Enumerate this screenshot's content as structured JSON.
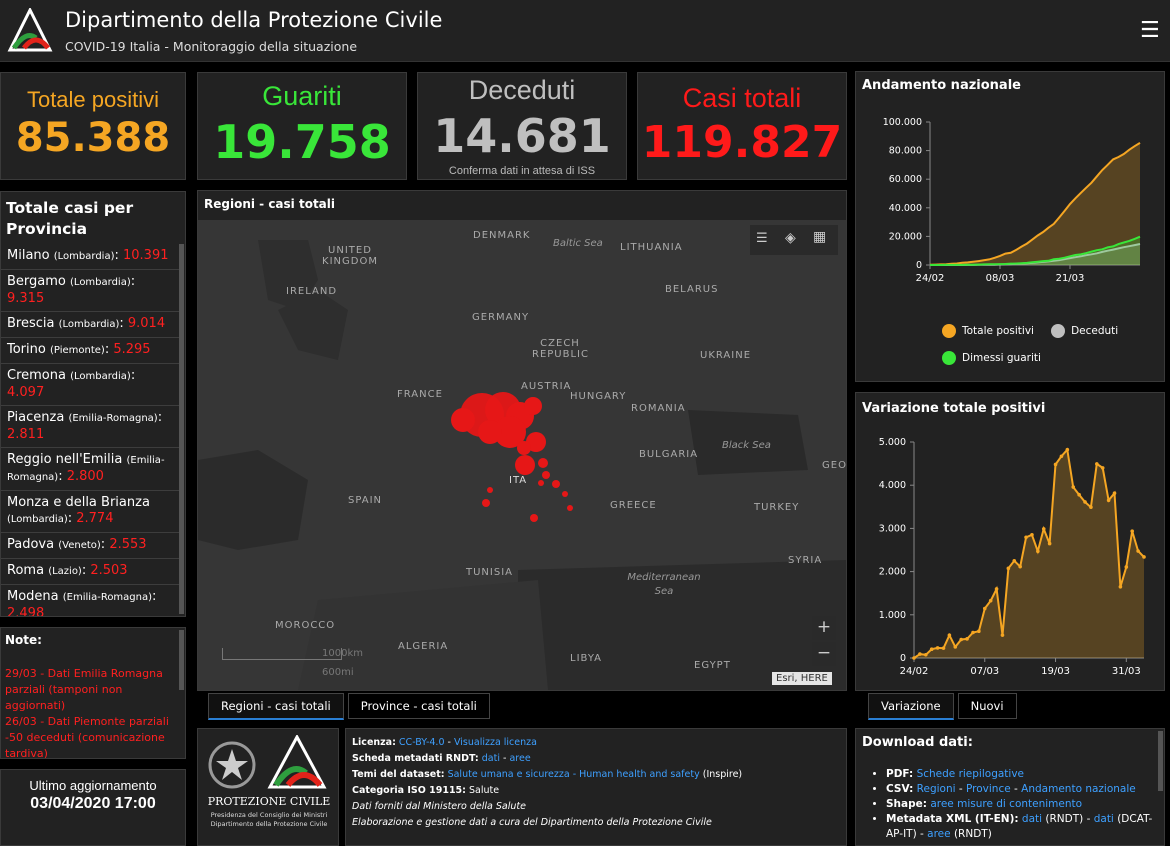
{
  "header": {
    "title": "Dipartimento della Protezione Civile",
    "subtitle": "COVID-19 Italia - Monitoraggio della situazione",
    "menu_icon": "hamburger-icon"
  },
  "kpis": {
    "totale_positivi": {
      "label": "Totale positivi",
      "value": "85.388",
      "color": "#f5a623"
    },
    "guariti": {
      "label": "Guariti",
      "value": "19.758",
      "color": "#39e639"
    },
    "deceduti": {
      "label": "Deceduti",
      "value": "14.681",
      "note": "Conferma dati in attesa di ISS",
      "color": "#bfbfbf"
    },
    "casi_totali": {
      "label": "Casi totali",
      "value": "119.827",
      "color": "#ff1a1a"
    }
  },
  "province": {
    "title": "Totale casi per Provincia",
    "items": [
      {
        "name": "Milano",
        "region": "(Lombardia)",
        "value": "10.391"
      },
      {
        "name": "Bergamo",
        "region": "(Lombardia)",
        "value": "9.315"
      },
      {
        "name": "Brescia",
        "region": "(Lombardia)",
        "value": "9.014"
      },
      {
        "name": "Torino",
        "region": "(Piemonte)",
        "value": "5.295"
      },
      {
        "name": "Cremona",
        "region": "(Lombardia)",
        "value": "4.097"
      },
      {
        "name": "Piacenza",
        "region": "(Emilia-Romagna)",
        "value": "2.811"
      },
      {
        "name": "Reggio nell'Emilia",
        "region": "(Emilia-Romagna)",
        "value": "2.800"
      },
      {
        "name": "Monza e della Brianza",
        "region": "(Lombardia)",
        "value": "2.774"
      },
      {
        "name": "Padova",
        "region": "(Veneto)",
        "value": "2.553"
      },
      {
        "name": "Roma",
        "region": "(Lazio)",
        "value": "2.503"
      },
      {
        "name": "Modena",
        "region": "(Emilia-Romagna)",
        "value": "2.498"
      }
    ]
  },
  "notes": {
    "title": "Note:",
    "text1": "29/03 - Dati  Emilia Romagna parziali (tamponi non aggiornati)",
    "text2": "26/03 - Dati Piemonte parziali -50 deceduti (comunicazione tardiva)"
  },
  "update": {
    "label": "Ultimo aggiornamento",
    "value": "03/04/2020 17:00"
  },
  "map": {
    "title": "Regioni - casi totali",
    "labels": {
      "denmark": "DENMARK",
      "baltic": "Baltic Sea",
      "lithuania": "LITHUANIA",
      "uk": "UNITED KINGDOM",
      "ireland": "IRELAND",
      "belarus": "BELARUS",
      "germany": "GERMANY",
      "czech": "CZECH REPUBLIC",
      "ukraine": "UKRAINE",
      "france": "FRANCE",
      "austria": "AUSTRIA",
      "hungary": "HUNGARY",
      "romania": "ROMANIA",
      "blacksea": "Black Sea",
      "bulgaria": "BULGARIA",
      "geo": "GEO",
      "spain": "SPAIN",
      "greece": "GREECE",
      "turkey": "TURKEY",
      "tunisia": "TUNISIA",
      "med": "Mediterranean Sea",
      "syria": "SYRIA",
      "morocco": "MOROCCO",
      "algeria": "ALGERIA",
      "libya": "LIBYA",
      "egypt": "EGYPT",
      "italy": "ITA"
    },
    "scale_km": "1000km",
    "scale_mi": "600mi",
    "attribution": "Esri, HERE",
    "zoom_in": "+",
    "zoom_out": "−"
  },
  "map_tabs": [
    "Regioni - casi totali",
    "Province - casi totali"
  ],
  "logo_block": {
    "name": "PROTEZIONE CIVILE",
    "line1": "Presidenza del Consiglio dei Ministri",
    "line2": "Dipartimento della Protezione Civile"
  },
  "license": {
    "lic_label": "Licenza:",
    "lic_value": "CC-BY-4.0",
    "lic_sep": " - ",
    "lic_link": "Visualizza licenza",
    "meta_label": "Scheda metadati RNDT:",
    "meta_v1": "dati",
    "meta_v2": "aree",
    "temi_label": "Temi del dataset:",
    "temi_value": "Salute umana e sicurezza - Human health and safety",
    "temi_suffix": " (Inspire)",
    "iso_label": "Categoria ISO 19115:",
    "iso_value": "Salute",
    "line5": "Dati forniti dal Ministero della Salute",
    "line6": "Elaborazione e gestione dati a cura del Dipartimento della Protezione Civile"
  },
  "andamento": {
    "title": "Andamento nazionale",
    "legend": [
      {
        "name": "Totale positivi",
        "color": "#f5a623"
      },
      {
        "name": "Deceduti",
        "color": "#bfbfbf"
      },
      {
        "name": "Dimessi guariti",
        "color": "#39e639"
      }
    ]
  },
  "variazione": {
    "title": "Variazione totale positivi"
  },
  "var_tabs": [
    "Variazione",
    "Nuovi"
  ],
  "download": {
    "title": "Download dati:",
    "pdf_label": "PDF:",
    "pdf_link": "Schede riepilogative",
    "csv_label": "CSV:",
    "csv_l1": "Regioni",
    "csv_l2": "Province",
    "csv_l3": "Andamento nazionale",
    "shape_label": "Shape:",
    "shape_link": "aree misure di contenimento",
    "xml_label": "Metadata XML (IT-EN):",
    "xml_l1": "dati",
    "xml_t1": " (RNDT) - ",
    "xml_l2": "dati",
    "xml_t2": " (DCAT-AP-IT) - ",
    "xml_l3": "aree",
    "xml_t3": " (RNDT)"
  },
  "chart_data": [
    {
      "type": "area",
      "title": "Andamento nazionale",
      "x_ticks": [
        "24/02",
        "08/03",
        "21/03"
      ],
      "y_ticks": [
        "0",
        "20.000",
        "40.000",
        "60.000",
        "80.000",
        "100.000"
      ],
      "ylim": [
        0,
        100000
      ],
      "x": [
        "24/02",
        "25/02",
        "26/02",
        "27/02",
        "28/02",
        "29/02",
        "01/03",
        "02/03",
        "03/03",
        "04/03",
        "05/03",
        "06/03",
        "07/03",
        "08/03",
        "09/03",
        "10/03",
        "11/03",
        "12/03",
        "13/03",
        "14/03",
        "15/03",
        "16/03",
        "17/03",
        "18/03",
        "19/03",
        "20/03",
        "21/03",
        "22/03",
        "23/03",
        "24/03",
        "25/03",
        "26/03",
        "27/03",
        "28/03",
        "29/03",
        "30/03",
        "31/03",
        "01/04",
        "02/04",
        "03/04"
      ],
      "series": [
        {
          "name": "Totale positivi",
          "color": "#f5a623",
          "values": [
            221,
            311,
            385,
            588,
            821,
            1049,
            1577,
            1835,
            2263,
            2706,
            3296,
            3916,
            5061,
            6387,
            7985,
            8514,
            10590,
            12839,
            14955,
            17750,
            20603,
            23073,
            26062,
            28710,
            33190,
            37860,
            42681,
            46638,
            50418,
            54030,
            57521,
            62013,
            66414,
            70065,
            73880,
            75528,
            77635,
            80572,
            83049,
            85388
          ]
        },
        {
          "name": "Deceduti",
          "color": "#bfbfbf",
          "values": [
            7,
            10,
            12,
            17,
            21,
            29,
            34,
            52,
            79,
            107,
            148,
            197,
            233,
            366,
            463,
            631,
            827,
            1016,
            1266,
            1441,
            1809,
            2158,
            2503,
            2978,
            3405,
            4032,
            4825,
            5476,
            6077,
            6820,
            7503,
            8165,
            9134,
            10023,
            10779,
            11591,
            12428,
            13155,
            13915,
            14681
          ]
        },
        {
          "name": "Dimessi guariti",
          "color": "#39e639",
          "values": [
            1,
            1,
            3,
            45,
            46,
            50,
            83,
            149,
            160,
            276,
            414,
            523,
            589,
            622,
            724,
            1004,
            1045,
            1258,
            1439,
            1966,
            2335,
            2749,
            2941,
            4025,
            4440,
            5129,
            6072,
            7024,
            7432,
            8326,
            9362,
            10361,
            10950,
            12384,
            13030,
            14620,
            15729,
            16847,
            18278,
            19758
          ]
        }
      ]
    },
    {
      "type": "area",
      "title": "Variazione totale positivi",
      "x_ticks": [
        "24/02",
        "07/03",
        "19/03",
        "31/03"
      ],
      "y_ticks": [
        "0",
        "1.000",
        "2.000",
        "3.000",
        "4.000",
        "5.000"
      ],
      "ylim": [
        0,
        5000
      ],
      "x": [
        "24/02",
        "25/02",
        "26/02",
        "27/02",
        "28/02",
        "29/02",
        "01/03",
        "02/03",
        "03/03",
        "04/03",
        "05/03",
        "06/03",
        "07/03",
        "08/03",
        "09/03",
        "10/03",
        "11/03",
        "12/03",
        "13/03",
        "14/03",
        "15/03",
        "16/03",
        "17/03",
        "18/03",
        "19/03",
        "20/03",
        "21/03",
        "22/03",
        "23/03",
        "24/03",
        "25/03",
        "26/03",
        "27/03",
        "28/03",
        "29/03",
        "30/03",
        "31/03",
        "01/04",
        "02/04",
        "03/04"
      ],
      "series": [
        {
          "name": "Variazione totale positivi",
          "color": "#f5a623",
          "values": [
            0,
            90,
            74,
            203,
            233,
            228,
            528,
            258,
            428,
            443,
            590,
            620,
            1145,
            1326,
            1598,
            529,
            2076,
            2249,
            2116,
            2795,
            2853,
            2470,
            2989,
            2648,
            4480,
            4670,
            4821,
            3957,
            3780,
            3612,
            3491,
            4492,
            4401,
            3651,
            3815,
            1648,
            2107,
            2937,
            2477,
            2339
          ]
        }
      ]
    }
  ]
}
